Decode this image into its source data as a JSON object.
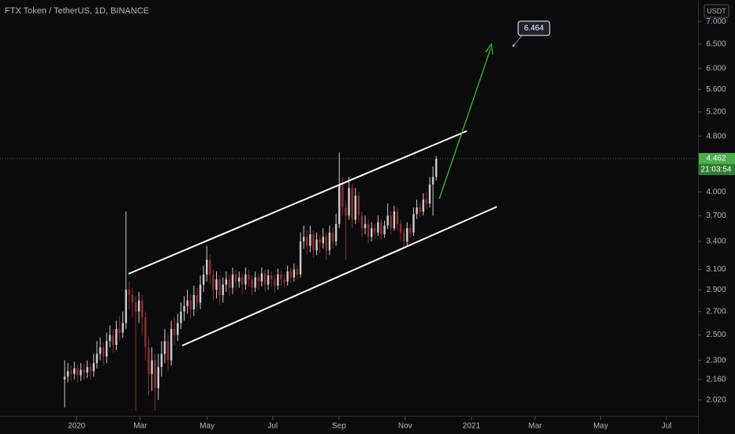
{
  "chart_data": {
    "type": "candlestick",
    "title": "FTX Token / TetherUS, 1D, BINANCE",
    "currency": "USDT",
    "log_scale": true,
    "grid": false,
    "up_color": "#c9c9c9",
    "down_color": "#8e2f2f",
    "last_price": 4.462,
    "last_price_color": "#4caf50",
    "countdown": "21:03:54",
    "price_label": 6.464,
    "xlim": [
      -20,
      196
    ],
    "xticks": [
      {
        "value": 3.7,
        "label": "2020"
      },
      {
        "value": 23.4,
        "label": "Mar"
      },
      {
        "value": 44.1,
        "label": "May"
      },
      {
        "value": 64.4,
        "label": "Jul"
      },
      {
        "value": 84.9,
        "label": "Sep"
      },
      {
        "value": 105.4,
        "label": "Nov"
      },
      {
        "value": 125.9,
        "label": "2021"
      },
      {
        "value": 145.6,
        "label": "Mar"
      },
      {
        "value": 165.9,
        "label": "May"
      },
      {
        "value": 186.3,
        "label": "Jul"
      }
    ],
    "ylim": [
      1.917,
      7.51
    ],
    "yticks": [
      {
        "value": 7,
        "label": "7.000"
      },
      {
        "value": 6.5,
        "label": "6.500"
      },
      {
        "value": 6,
        "label": "6.000"
      },
      {
        "value": 5.6,
        "label": "5.600"
      },
      {
        "value": 5.2,
        "label": "5.200"
      },
      {
        "value": 4.8,
        "label": "4.800"
      },
      {
        "value": 4,
        "label": "4.000"
      },
      {
        "value": 3.7,
        "label": "3.700"
      },
      {
        "value": 3.4,
        "label": "3.400"
      },
      {
        "value": 3.1,
        "label": "3.100"
      },
      {
        "value": 2.9,
        "label": "2.900"
      },
      {
        "value": 2.7,
        "label": "2.700"
      },
      {
        "value": 2.5,
        "label": "2.500"
      },
      {
        "value": 2.3,
        "label": "2.300"
      },
      {
        "value": 2.16,
        "label": "2.160"
      },
      {
        "value": 2.02,
        "label": "2.020"
      }
    ],
    "open": [
      2.16,
      2.18,
      2.22,
      2.2,
      2.24,
      2.19,
      2.23,
      2.21,
      2.25,
      2.22,
      2.28,
      2.35,
      2.4,
      2.33,
      2.45,
      2.5,
      2.42,
      2.55,
      2.52,
      2.6,
      2.9,
      2.85,
      2.78,
      2.7,
      2.8,
      2.65,
      2.4,
      2.2,
      2.3,
      2.1,
      2.25,
      2.35,
      2.45,
      2.3,
      2.55,
      2.5,
      2.6,
      2.7,
      2.75,
      2.8,
      2.72,
      2.85,
      2.78,
      2.95,
      3.05,
      3.2,
      3.05,
      2.9,
      3.0,
      2.85,
      2.95,
      3.0,
      2.92,
      3.05,
      2.98,
      3.02,
      2.95,
      3.05,
      3.0,
      2.92,
      3.02,
      2.98,
      3.06,
      2.95,
      3.04,
      3.0,
      2.94,
      3.05,
      3.0,
      2.98,
      3.08,
      3.02,
      3.1,
      3.05,
      3.4,
      3.45,
      3.35,
      3.48,
      3.3,
      3.42,
      3.38,
      3.45,
      3.3,
      3.5,
      3.4,
      3.6,
      4.1,
      3.8,
      3.7,
      4.05,
      3.65,
      3.95,
      3.7,
      3.55,
      3.6,
      3.45,
      3.55,
      3.5,
      3.62,
      3.48,
      3.58,
      3.7,
      3.55,
      3.75,
      3.6,
      3.5,
      3.4,
      3.55,
      3.5,
      3.72,
      3.8,
      3.75,
      3.9,
      3.85,
      4.1,
      4.2
    ],
    "high": [
      2.3,
      2.28,
      2.26,
      2.29,
      2.27,
      2.28,
      2.27,
      2.3,
      2.28,
      2.35,
      2.45,
      2.48,
      2.44,
      2.52,
      2.58,
      2.55,
      2.62,
      2.66,
      2.7,
      3.75,
      2.98,
      2.92,
      2.84,
      2.88,
      2.85,
      2.7,
      2.48,
      2.4,
      2.35,
      2.35,
      2.45,
      2.55,
      2.5,
      2.62,
      2.65,
      2.68,
      2.78,
      2.84,
      2.9,
      2.86,
      2.94,
      2.92,
      3.04,
      3.14,
      3.35,
      3.26,
      3.1,
      3.08,
      3.04,
      3.02,
      3.08,
      3.05,
      3.12,
      3.1,
      3.08,
      3.06,
      3.12,
      3.1,
      3.04,
      3.08,
      3.06,
      3.12,
      3.1,
      3.1,
      3.08,
      3.05,
      3.11,
      3.09,
      3.05,
      3.14,
      3.12,
      3.16,
      3.14,
      3.5,
      3.58,
      3.52,
      3.58,
      3.52,
      3.5,
      3.48,
      3.55,
      3.5,
      3.58,
      3.56,
      3.72,
      4.55,
      4.2,
      3.88,
      4.2,
      4.1,
      4.05,
      4.0,
      3.75,
      3.7,
      3.66,
      3.62,
      3.6,
      3.7,
      3.66,
      3.64,
      3.85,
      3.76,
      3.82,
      3.8,
      3.65,
      3.55,
      3.62,
      3.6,
      3.8,
      3.9,
      3.86,
      3.98,
      4.0,
      4.2,
      4.35,
      4.5
    ],
    "low": [
      1.97,
      2.14,
      2.15,
      2.16,
      2.14,
      2.15,
      2.16,
      2.17,
      2.16,
      2.18,
      2.24,
      2.3,
      2.26,
      2.28,
      2.4,
      2.36,
      2.38,
      2.45,
      2.48,
      2.55,
      2.72,
      2.65,
      1.95,
      2.6,
      2.5,
      2.3,
      2.05,
      2.08,
      1.95,
      2.02,
      2.18,
      2.28,
      2.22,
      2.26,
      2.42,
      2.45,
      2.55,
      2.62,
      2.68,
      2.64,
      2.66,
      2.7,
      2.72,
      2.88,
      2.98,
      2.96,
      2.8,
      2.82,
      2.76,
      2.78,
      2.88,
      2.84,
      2.86,
      2.9,
      2.92,
      2.86,
      2.9,
      2.93,
      2.85,
      2.88,
      2.9,
      2.93,
      2.88,
      2.9,
      2.93,
      2.87,
      2.9,
      2.94,
      2.92,
      2.94,
      2.96,
      2.98,
      3.0,
      3.02,
      3.32,
      3.26,
      3.28,
      3.22,
      3.25,
      3.28,
      3.32,
      3.2,
      3.25,
      3.32,
      3.35,
      3.55,
      3.7,
      3.2,
      3.65,
      3.55,
      3.6,
      3.62,
      3.45,
      3.48,
      3.38,
      3.4,
      3.42,
      3.46,
      3.42,
      3.44,
      3.54,
      3.48,
      3.52,
      3.52,
      3.4,
      3.32,
      3.35,
      3.44,
      3.46,
      3.66,
      3.68,
      3.7,
      3.78,
      3.8,
      3.7,
      4.15
    ],
    "close": [
      2.18,
      2.22,
      2.2,
      2.24,
      2.19,
      2.23,
      2.21,
      2.25,
      2.22,
      2.28,
      2.35,
      2.4,
      2.33,
      2.45,
      2.5,
      2.42,
      2.55,
      2.52,
      2.6,
      2.9,
      2.85,
      2.78,
      2.7,
      2.8,
      2.65,
      2.4,
      2.2,
      2.3,
      2.1,
      2.25,
      2.35,
      2.45,
      2.3,
      2.55,
      2.5,
      2.6,
      2.7,
      2.75,
      2.8,
      2.72,
      2.85,
      2.78,
      2.95,
      3.05,
      3.2,
      3.05,
      2.9,
      3.0,
      2.85,
      2.95,
      3.0,
      2.92,
      3.05,
      2.98,
      3.02,
      2.95,
      3.05,
      3.0,
      2.92,
      3.02,
      2.98,
      3.06,
      2.95,
      3.04,
      3.0,
      2.94,
      3.05,
      3.0,
      2.98,
      3.08,
      3.02,
      3.1,
      3.05,
      3.4,
      3.45,
      3.35,
      3.48,
      3.3,
      3.42,
      3.38,
      3.45,
      3.3,
      3.5,
      3.4,
      3.6,
      4.1,
      3.8,
      3.7,
      4.05,
      3.65,
      3.95,
      3.7,
      3.55,
      3.6,
      3.45,
      3.55,
      3.5,
      3.62,
      3.48,
      3.58,
      3.7,
      3.55,
      3.75,
      3.6,
      3.5,
      3.4,
      3.55,
      3.5,
      3.72,
      3.8,
      3.75,
      3.9,
      3.85,
      4.1,
      4.2,
      4.46
    ]
  }
}
